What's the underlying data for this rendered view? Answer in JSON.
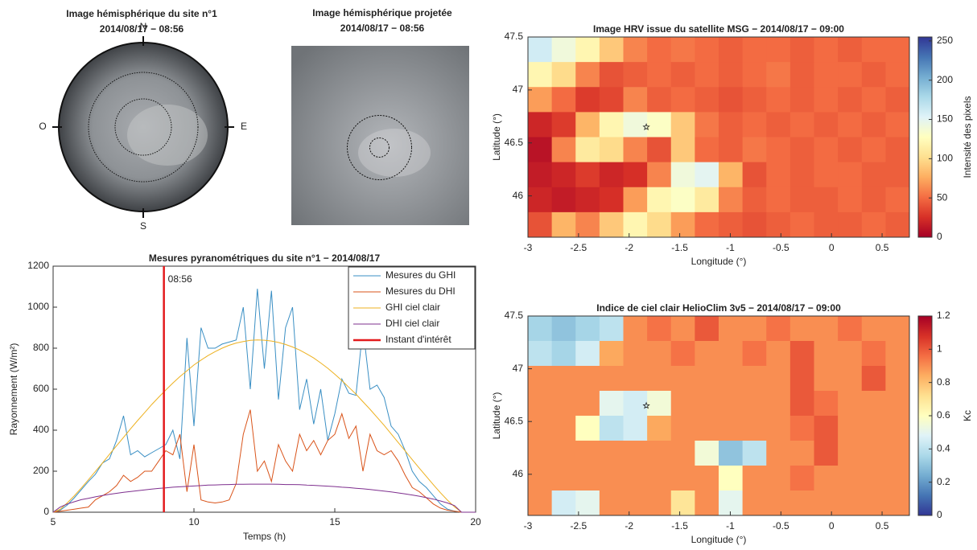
{
  "chart_data": [
    {
      "type": "hemispheric",
      "title": [
        "Image hémisphérique du site n°1",
        "2014/08/17 − 08:56"
      ],
      "labels": [
        "N",
        "E",
        "S",
        "O"
      ]
    },
    {
      "type": "projected",
      "title": [
        "Image hémisphérique projetée",
        "2014/08/17 − 08:56"
      ]
    },
    {
      "type": "line",
      "title": "Mesures pyranométriques du site n°1 − 2014/08/17",
      "xlabel": "Temps (h)",
      "ylabel": "Rayonnement (W/m²)",
      "xlim": [
        5,
        20
      ],
      "xticks": [
        5,
        10,
        15,
        20
      ],
      "ylim": [
        0,
        1200
      ],
      "yticks": [
        0,
        200,
        400,
        600,
        800,
        1000,
        1200
      ],
      "x": [
        5,
        5.25,
        5.5,
        5.75,
        6,
        6.25,
        6.5,
        6.75,
        7,
        7.25,
        7.5,
        7.75,
        8,
        8.25,
        8.5,
        8.75,
        9,
        9.25,
        9.5,
        9.75,
        10,
        10.25,
        10.5,
        10.75,
        11,
        11.25,
        11.5,
        11.75,
        12,
        12.25,
        12.5,
        12.75,
        13,
        13.25,
        13.5,
        13.75,
        14,
        14.25,
        14.5,
        14.75,
        15,
        15.25,
        15.5,
        15.75,
        16,
        16.25,
        16.5,
        16.75,
        17,
        17.25,
        17.5,
        17.75,
        18,
        18.25,
        18.5,
        18.75,
        19,
        19.25,
        19.5,
        19.75,
        20
      ],
      "series": [
        {
          "name": "Mesures du GHI",
          "color": "#3a8fc4",
          "values": [
            0,
            10,
            35,
            70,
            110,
            150,
            185,
            240,
            260,
            350,
            470,
            280,
            300,
            270,
            290,
            310,
            330,
            400,
            260,
            850,
            420,
            900,
            800,
            800,
            820,
            830,
            840,
            1000,
            600,
            1090,
            700,
            1080,
            550,
            900,
            1000,
            500,
            650,
            430,
            600,
            350,
            480,
            650,
            580,
            570,
            900,
            600,
            620,
            560,
            420,
            380,
            300,
            200,
            150,
            120,
            80,
            40,
            15,
            5,
            0,
            0,
            0
          ]
        },
        {
          "name": "Mesures du DHI",
          "color": "#d95319",
          "values": [
            0,
            5,
            10,
            15,
            20,
            25,
            60,
            80,
            100,
            130,
            180,
            150,
            170,
            200,
            200,
            250,
            300,
            280,
            380,
            100,
            330,
            60,
            50,
            45,
            50,
            60,
            140,
            380,
            500,
            200,
            250,
            150,
            330,
            250,
            200,
            380,
            300,
            350,
            280,
            350,
            380,
            480,
            360,
            420,
            200,
            380,
            300,
            280,
            300,
            250,
            180,
            120,
            100,
            70,
            40,
            20,
            10,
            5,
            0,
            0,
            0
          ]
        },
        {
          "name": "GHI ciel clair",
          "color": "#edb120",
          "values": [
            0,
            14,
            45,
            80,
            118,
            158,
            199,
            240,
            282,
            324,
            365,
            407,
            447,
            486,
            525,
            561,
            596,
            630,
            661,
            690,
            718,
            742,
            764,
            783,
            800,
            814,
            825,
            832,
            838,
            840,
            839,
            835,
            828,
            818,
            806,
            791,
            772,
            752,
            728,
            702,
            673,
            642,
            609,
            576,
            539,
            502,
            463,
            424,
            382,
            340,
            299,
            256,
            215,
            174,
            134,
            95,
            59,
            26,
            0,
            0,
            0
          ]
        },
        {
          "name": "DHI ciel clair",
          "color": "#7e2f8e",
          "values": [
            0,
            25,
            40,
            51,
            61,
            68,
            75,
            81,
            87,
            92,
            97,
            101,
            105,
            109,
            113,
            116,
            119,
            122,
            124,
            126,
            128,
            130,
            132,
            133,
            134,
            135,
            136,
            136,
            137,
            137,
            137,
            137,
            136,
            135,
            135,
            134,
            132,
            131,
            129,
            127,
            125,
            122,
            120,
            117,
            114,
            111,
            107,
            103,
            99,
            94,
            89,
            84,
            78,
            71,
            64,
            55,
            45,
            32,
            0,
            0,
            0
          ]
        }
      ],
      "vline": {
        "name": "Instant d'intérêt",
        "x": 8.933,
        "label": "08:56",
        "color": "#e31a1c"
      }
    },
    {
      "type": "heatmap",
      "title": "Image HRV issue du satellite MSG − 2014/08/17 − 09:00",
      "xlabel": "Longitude (°)",
      "ylabel": "Latitude (°)",
      "clabel": "Intensité des pixels",
      "xlim": [
        -3,
        0.77
      ],
      "xticks": [
        -3,
        -2.5,
        -2,
        -1.5,
        -1,
        -0.5,
        0,
        0.5
      ],
      "ylim": [
        45.61,
        47.5
      ],
      "yticks": [
        46,
        46.5,
        47,
        47.5
      ],
      "clim": [
        0,
        255
      ],
      "cticks": [
        0,
        50,
        100,
        150,
        200,
        250
      ],
      "colormap": [
        "#a50026",
        "#d73027",
        "#f46d43",
        "#fdae61",
        "#fee090",
        "#ffffbf",
        "#e0f3f8",
        "#abd9e9",
        "#74add1",
        "#4575b4",
        "#313695"
      ],
      "site": {
        "x": -1.83,
        "y": 46.65
      },
      "values": [
        [
          160,
          140,
          120,
          90,
          60,
          50,
          55,
          50,
          45,
          50,
          50,
          45,
          50,
          45,
          50,
          50
        ],
        [
          120,
          100,
          60,
          40,
          45,
          50,
          45,
          50,
          45,
          50,
          55,
          45,
          50,
          50,
          45,
          50
        ],
        [
          70,
          50,
          30,
          35,
          60,
          45,
          50,
          45,
          40,
          45,
          50,
          45,
          50,
          45,
          50,
          45
        ],
        [
          20,
          30,
          80,
          120,
          140,
          130,
          90,
          55,
          45,
          50,
          45,
          50,
          45,
          50,
          45,
          50
        ],
        [
          10,
          60,
          110,
          100,
          60,
          40,
          90,
          50,
          45,
          55,
          50,
          45,
          50,
          45,
          50,
          45
        ],
        [
          15,
          20,
          30,
          20,
          25,
          60,
          140,
          150,
          80,
          40,
          50,
          45,
          50,
          50,
          45,
          45
        ],
        [
          20,
          15,
          20,
          25,
          70,
          120,
          130,
          110,
          60,
          45,
          50,
          45,
          45,
          50,
          45,
          50
        ],
        [
          40,
          80,
          60,
          90,
          120,
          100,
          70,
          50,
          45,
          40,
          45,
          50,
          45,
          45,
          50,
          45
        ]
      ]
    },
    {
      "type": "heatmap",
      "title": "Indice de ciel clair HelioClim 3v5 − 2014/08/17 − 09:00",
      "xlabel": "Longitude (°)",
      "ylabel": "Latitude (°)",
      "clabel": "Kc",
      "xlim": [
        -3,
        0.77
      ],
      "xticks": [
        -3,
        -2.5,
        -2,
        -1.5,
        -1,
        -0.5,
        0,
        0.5
      ],
      "ylim": [
        45.61,
        47.5
      ],
      "yticks": [
        46,
        46.5,
        47,
        47.5
      ],
      "clim": [
        0,
        1.2
      ],
      "cticks": [
        0,
        0.2,
        0.4,
        0.6,
        0.8,
        1,
        1.2
      ],
      "colormap": [
        "#313695",
        "#4575b4",
        "#74add1",
        "#abd9e9",
        "#e0f3f8",
        "#ffffbf",
        "#fee090",
        "#fdae61",
        "#f46d43",
        "#d73027",
        "#a50026"
      ],
      "site": {
        "x": -1.83,
        "y": 46.65
      },
      "values": [
        [
          0.35,
          0.3,
          0.35,
          0.4,
          0.9,
          0.95,
          0.9,
          1.0,
          0.9,
          0.9,
          0.95,
          0.9,
          0.9,
          0.95,
          0.9,
          0.9
        ],
        [
          0.4,
          0.35,
          0.45,
          0.85,
          0.9,
          0.9,
          0.95,
          0.9,
          0.9,
          0.95,
          0.9,
          1.0,
          0.9,
          0.9,
          0.95,
          0.9
        ],
        [
          0.9,
          0.9,
          0.9,
          0.9,
          0.9,
          0.9,
          0.9,
          0.9,
          0.9,
          0.9,
          0.9,
          1.0,
          0.9,
          0.9,
          1.0,
          0.9
        ],
        [
          0.9,
          0.9,
          0.9,
          0.5,
          0.45,
          0.55,
          0.9,
          0.9,
          0.9,
          0.9,
          0.9,
          1.0,
          0.95,
          0.9,
          0.9,
          0.9
        ],
        [
          0.9,
          0.9,
          0.6,
          0.4,
          0.45,
          0.85,
          0.9,
          0.9,
          0.9,
          0.9,
          0.9,
          0.95,
          1.0,
          0.9,
          0.9,
          0.9
        ],
        [
          0.9,
          0.9,
          0.9,
          0.9,
          0.9,
          0.9,
          0.9,
          0.55,
          0.3,
          0.4,
          0.9,
          0.9,
          1.0,
          0.9,
          0.9,
          0.9
        ],
        [
          0.9,
          0.9,
          0.9,
          0.9,
          0.9,
          0.9,
          0.9,
          0.9,
          0.6,
          0.9,
          0.9,
          0.95,
          0.9,
          0.9,
          0.9,
          0.9
        ],
        [
          0.9,
          0.45,
          0.5,
          0.9,
          0.9,
          0.9,
          0.7,
          0.9,
          0.5,
          0.9,
          0.9,
          0.9,
          0.9,
          0.9,
          0.9,
          0.9
        ]
      ]
    }
  ]
}
